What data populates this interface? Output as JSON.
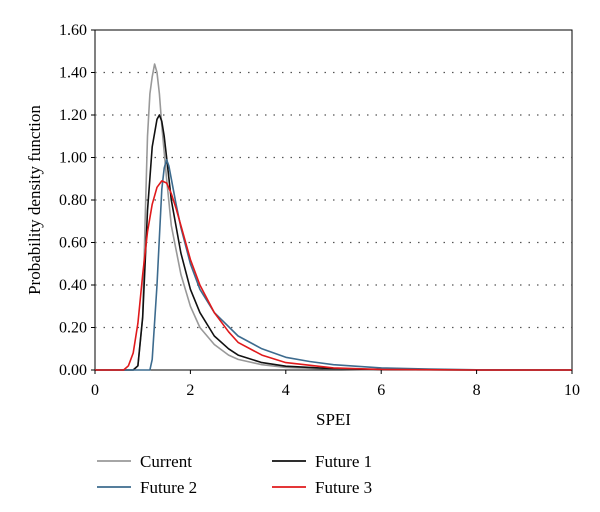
{
  "chart_data": {
    "type": "line",
    "title": "",
    "xlabel": "SPEI",
    "ylabel": "Probability density function",
    "xlim": [
      0,
      10
    ],
    "ylim": [
      0,
      1.6
    ],
    "xticks": [
      "0",
      "2",
      "4",
      "6",
      "8",
      "10"
    ],
    "yticks": [
      "0.00",
      "0.20",
      "0.40",
      "0.60",
      "0.80",
      "1.00",
      "1.20",
      "1.40",
      "1.60"
    ],
    "grid": "horizontal dotted",
    "legend_position": "bottom",
    "series": [
      {
        "name": "Current",
        "color": "#999999",
        "x": [
          0,
          0.8,
          0.9,
          1.0,
          1.05,
          1.1,
          1.15,
          1.2,
          1.25,
          1.3,
          1.35,
          1.4,
          1.5,
          1.6,
          1.8,
          2.0,
          2.2,
          2.5,
          2.8,
          3.0,
          3.5,
          4.0,
          5.0,
          6.0,
          8.0,
          10.0
        ],
        "y": [
          0,
          0,
          0.02,
          0.25,
          0.7,
          1.1,
          1.3,
          1.38,
          1.44,
          1.4,
          1.3,
          1.15,
          0.9,
          0.68,
          0.45,
          0.3,
          0.2,
          0.12,
          0.07,
          0.05,
          0.025,
          0.012,
          0.004,
          0.001,
          0,
          0
        ]
      },
      {
        "name": "Future 1",
        "color": "#111111",
        "x": [
          0,
          0.8,
          0.9,
          1.0,
          1.1,
          1.2,
          1.3,
          1.35,
          1.4,
          1.45,
          1.5,
          1.6,
          1.8,
          2.0,
          2.2,
          2.5,
          2.8,
          3.0,
          3.5,
          4.0,
          5.0,
          6.0,
          8.0,
          10.0
        ],
        "y": [
          0,
          0,
          0.02,
          0.25,
          0.75,
          1.05,
          1.18,
          1.2,
          1.17,
          1.1,
          1.0,
          0.8,
          0.55,
          0.38,
          0.27,
          0.16,
          0.1,
          0.07,
          0.035,
          0.018,
          0.006,
          0.002,
          0,
          0
        ]
      },
      {
        "name": "Future 2",
        "color": "#3d6b8e",
        "x": [
          0,
          1.15,
          1.2,
          1.3,
          1.4,
          1.45,
          1.5,
          1.55,
          1.6,
          1.7,
          1.8,
          2.0,
          2.2,
          2.5,
          3.0,
          3.5,
          4.0,
          4.5,
          5.0,
          6.0,
          7.0,
          8.0,
          10.0
        ],
        "y": [
          0,
          0,
          0.05,
          0.4,
          0.85,
          0.95,
          0.99,
          0.96,
          0.9,
          0.78,
          0.67,
          0.5,
          0.38,
          0.27,
          0.16,
          0.1,
          0.06,
          0.04,
          0.025,
          0.01,
          0.004,
          0.001,
          0
        ]
      },
      {
        "name": "Future 3",
        "color": "#e0191b",
        "x": [
          0,
          0.6,
          0.7,
          0.8,
          0.9,
          1.0,
          1.1,
          1.2,
          1.3,
          1.4,
          1.5,
          1.6,
          1.7,
          1.8,
          2.0,
          2.2,
          2.5,
          2.8,
          3.0,
          3.5,
          4.0,
          5.0,
          6.0,
          8.0,
          10.0
        ],
        "y": [
          0,
          0,
          0.02,
          0.08,
          0.22,
          0.45,
          0.65,
          0.78,
          0.86,
          0.89,
          0.88,
          0.83,
          0.76,
          0.68,
          0.52,
          0.4,
          0.27,
          0.18,
          0.13,
          0.07,
          0.035,
          0.01,
          0.003,
          0,
          0
        ]
      }
    ]
  },
  "legend": {
    "items": [
      {
        "label": "Current",
        "color": "#999999"
      },
      {
        "label": "Future 1",
        "color": "#111111"
      },
      {
        "label": "Future 2",
        "color": "#3d6b8e"
      },
      {
        "label": "Future 3",
        "color": "#e0191b"
      }
    ]
  }
}
